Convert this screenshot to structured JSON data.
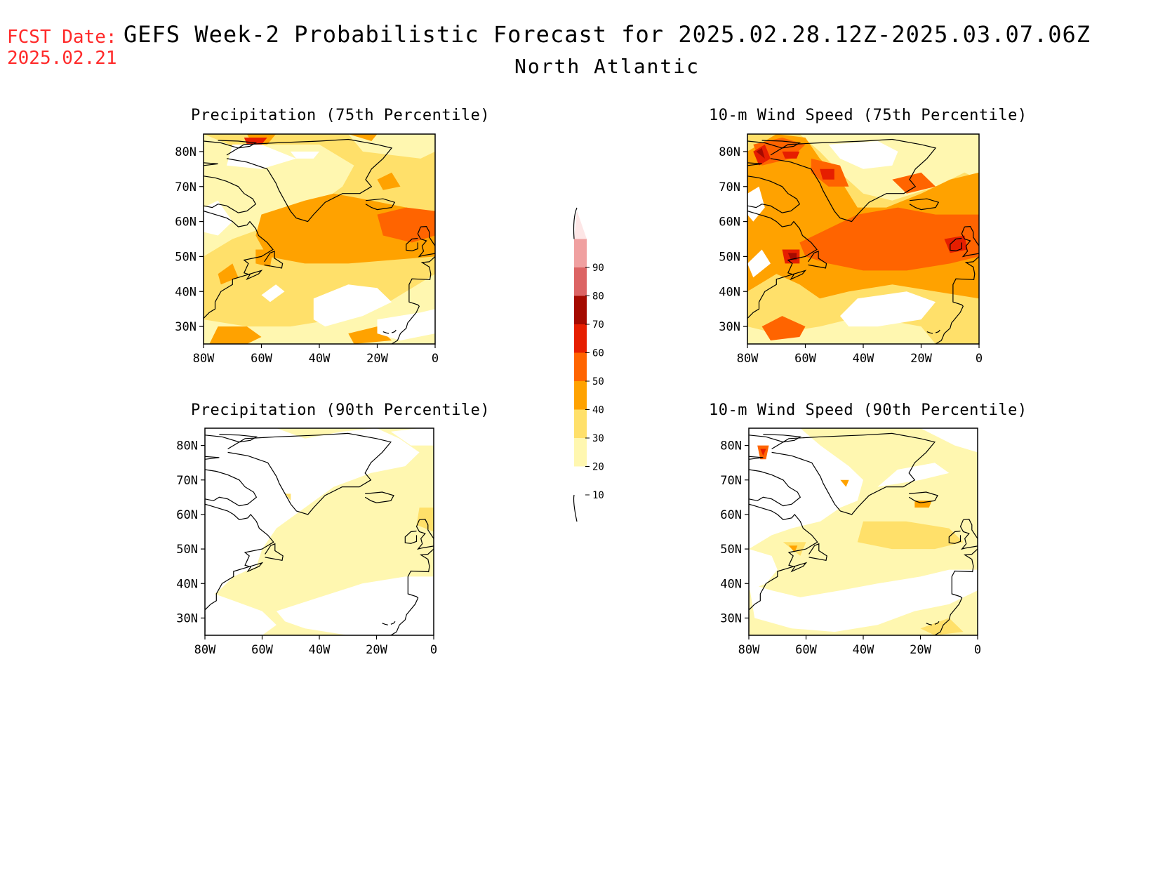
{
  "header": {
    "fcst_label": "FCST Date:",
    "fcst_date": "2025.02.21",
    "title": "GEFS Week-2 Probabilistic Forecast for 2025.02.28.12Z-2025.03.07.06Z",
    "subtitle": "North Atlantic"
  },
  "panels": [
    {
      "title": "Precipitation (75th Percentile)",
      "variable": "precipitation",
      "percentile": 75
    },
    {
      "title": "10-m Wind Speed (75th Percentile)",
      "variable": "wind",
      "percentile": 75
    },
    {
      "title": "Precipitation (90th Percentile)",
      "variable": "precipitation",
      "percentile": 90
    },
    {
      "title": "10-m Wind Speed (90th Percentile)",
      "variable": "wind",
      "percentile": 90
    }
  ],
  "axes": {
    "lat_ticks": [
      "80N",
      "70N",
      "60N",
      "50N",
      "40N",
      "30N"
    ],
    "lat_values": [
      80,
      70,
      60,
      50,
      40,
      30
    ],
    "lon_ticks": [
      "80W",
      "60W",
      "40W",
      "20W",
      "0"
    ],
    "lon_values": [
      -80,
      -60,
      -40,
      -20,
      0
    ],
    "lat_range": [
      25,
      85
    ],
    "lon_range": [
      -80,
      0
    ]
  },
  "colorbar": {
    "levels": [
      "10",
      "20",
      "30",
      "40",
      "50",
      "60",
      "70",
      "80",
      "90"
    ],
    "colors": [
      "#ffffff",
      "#fff7b0",
      "#ffe06a",
      "#ffa200",
      "#ff6400",
      "#e61e00",
      "#a50a00",
      "#dc6464",
      "#f0a0a0",
      "#fde6e6"
    ]
  },
  "map_colors": {
    "c0": "#ffffff",
    "c1": "#fff7b0",
    "c2": "#ffe06a",
    "c3": "#ffa200",
    "c4": "#ff6400",
    "c5": "#e61e00",
    "c6": "#a50a00"
  }
}
